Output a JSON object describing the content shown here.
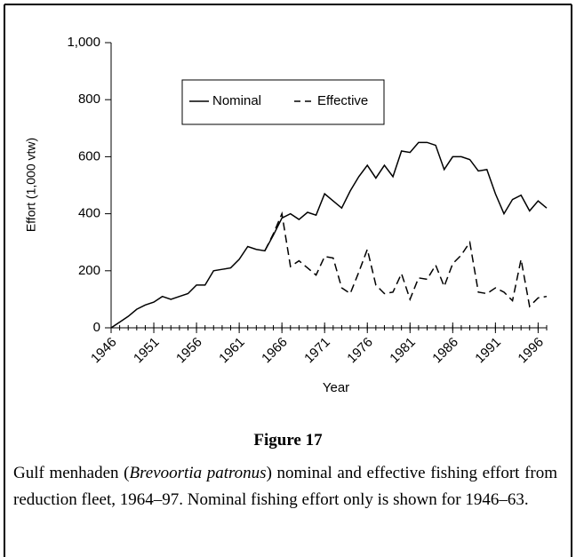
{
  "chart_data": {
    "type": "line",
    "xlabel": "Year",
    "ylabel": "Effort (1,000 vtw)",
    "x": [
      1946,
      1947,
      1948,
      1949,
      1950,
      1951,
      1952,
      1953,
      1954,
      1955,
      1956,
      1957,
      1958,
      1959,
      1960,
      1961,
      1962,
      1963,
      1964,
      1965,
      1966,
      1967,
      1968,
      1969,
      1970,
      1971,
      1972,
      1973,
      1974,
      1975,
      1976,
      1977,
      1978,
      1979,
      1980,
      1981,
      1982,
      1983,
      1984,
      1985,
      1986,
      1987,
      1988,
      1989,
      1990,
      1991,
      1992,
      1993,
      1994,
      1995,
      1996,
      1997
    ],
    "series": [
      {
        "name": "Nominal",
        "color": "#000000",
        "dash": "solid",
        "values": [
          0,
          20,
          40,
          65,
          80,
          90,
          110,
          100,
          110,
          120,
          150,
          150,
          200,
          205,
          210,
          240,
          285,
          275,
          270,
          325,
          385,
          400,
          380,
          405,
          395,
          470,
          445,
          420,
          480,
          530,
          570,
          525,
          570,
          530,
          620,
          615,
          650,
          650,
          640,
          555,
          600,
          600,
          590,
          550,
          555,
          470,
          400,
          450,
          465,
          410,
          445,
          420
        ]
      },
      {
        "name": "Effective",
        "color": "#000000",
        "dash": "dashed",
        "values": [
          null,
          null,
          null,
          null,
          null,
          null,
          null,
          null,
          null,
          null,
          null,
          null,
          null,
          null,
          null,
          null,
          null,
          null,
          270,
          330,
          400,
          215,
          235,
          210,
          185,
          250,
          245,
          140,
          120,
          195,
          275,
          150,
          120,
          125,
          190,
          100,
          175,
          170,
          220,
          145,
          225,
          255,
          300,
          125,
          120,
          140,
          125,
          95,
          240,
          75,
          105,
          110
        ]
      }
    ],
    "xlim": [
      1946,
      1997
    ],
    "xticks": [
      1946,
      1951,
      1956,
      1961,
      1966,
      1971,
      1976,
      1981,
      1986,
      1991,
      1996
    ],
    "ylim": [
      0,
      1000
    ],
    "yticks": [
      0,
      200,
      400,
      600,
      800,
      {
        "value": 1000,
        "label": "1,000"
      }
    ],
    "grid": false,
    "legend": "upper left"
  },
  "figure": {
    "label": "Figure 17",
    "caption": [
      "Gulf menhaden (",
      "Brevoortia patronus",
      ") nominal and effective fishing effort from reduction fleet, 1964–97. Nominal fishing effort only is shown for 1946–63."
    ]
  }
}
